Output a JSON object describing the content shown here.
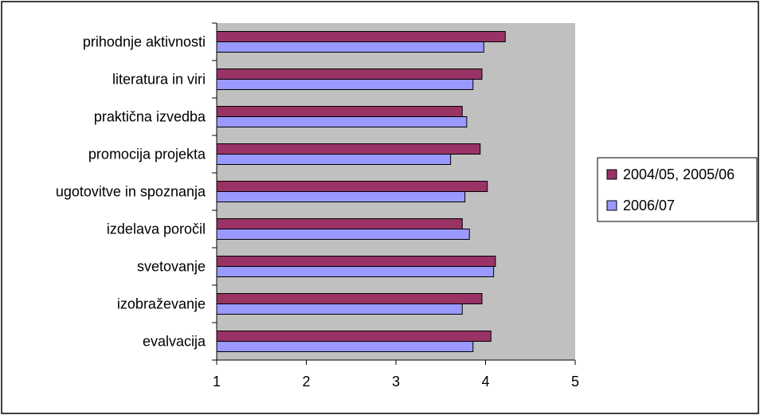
{
  "chart_data": {
    "type": "bar",
    "orientation": "horizontal",
    "title": "",
    "xlabel": "",
    "ylabel": "",
    "categories": [
      "prihodnje aktivnosti",
      "literatura in viri",
      "praktična izvedba",
      "promocija projekta",
      "ugotovitve in spoznanja",
      "izdelava poročil",
      "svetovanje",
      "izobraževanje",
      "evalvacija"
    ],
    "series": [
      {
        "name": "2004/05, 2005/06",
        "color": "#993366",
        "values": [
          4.22,
          3.96,
          3.74,
          3.94,
          4.02,
          3.74,
          4.11,
          3.96,
          4.06
        ]
      },
      {
        "name": "2006/07",
        "color": "#9999ff",
        "values": [
          3.98,
          3.86,
          3.79,
          3.61,
          3.77,
          3.82,
          4.09,
          3.74,
          3.86
        ]
      }
    ],
    "xlim": [
      1,
      5
    ],
    "xticks": [
      "1",
      "2",
      "3",
      "4",
      "5"
    ],
    "grid": false,
    "legend_position": "right",
    "plot_background": "#c0c0c0"
  }
}
